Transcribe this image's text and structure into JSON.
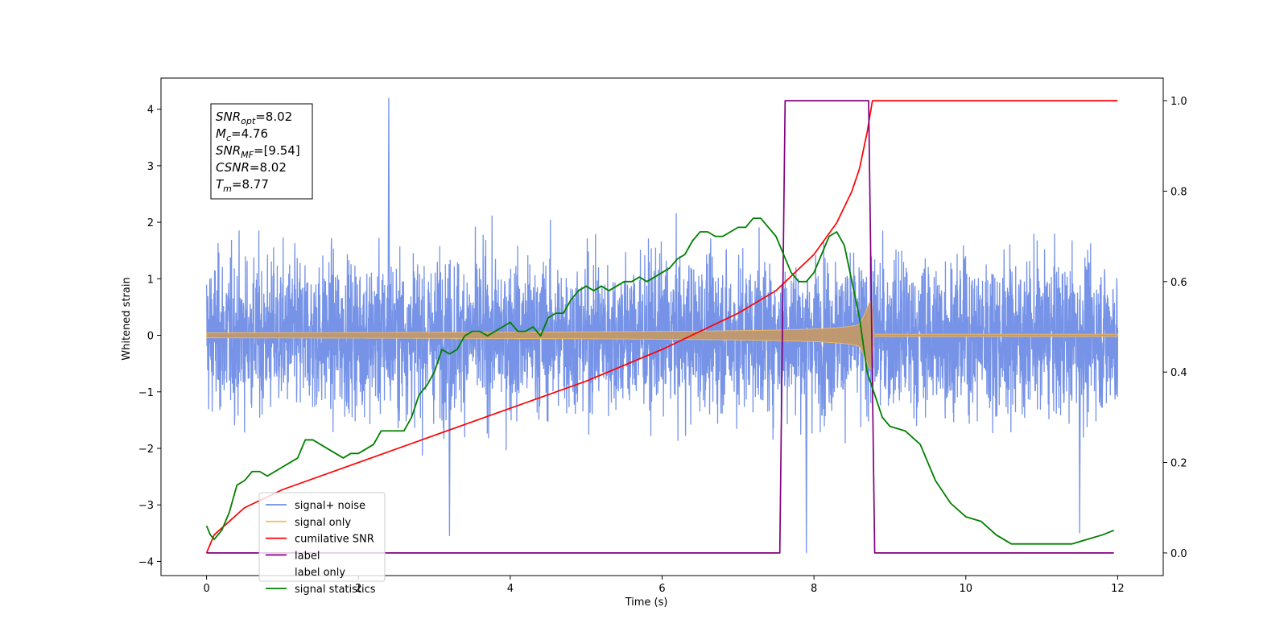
{
  "chart_data": {
    "type": "line",
    "title": "",
    "xlabel": "Time (s)",
    "ylabel": "Whitened strain",
    "xlim": [
      -0.6,
      12.6
    ],
    "ylim": [
      -4.25,
      4.55
    ],
    "y2lim": [
      -0.05,
      1.05
    ],
    "x_ticks": [
      0,
      2,
      4,
      6,
      8,
      10,
      12
    ],
    "y_ticks": [
      -4,
      -3,
      -2,
      -1,
      0,
      1,
      2,
      3,
      4
    ],
    "y2_ticks": [
      0.0,
      0.2,
      0.4,
      0.6,
      0.8,
      1.0
    ],
    "x_tick_labels": [
      "0",
      "2",
      "4",
      "6",
      "8",
      "10",
      "12"
    ],
    "y_tick_labels": [
      "−4",
      "−3",
      "−2",
      "−1",
      "0",
      "1",
      "2",
      "3",
      "4"
    ],
    "y2_tick_labels": [
      "0.0",
      "0.2",
      "0.4",
      "0.6",
      "0.8",
      "1.0"
    ],
    "legend_position": "lower-left",
    "series": [
      {
        "name": "signal+ noise",
        "axis": "left",
        "color": "#6f8de6",
        "kind": "noise",
        "x_range": [
          0,
          12
        ],
        "envelope": [
          2.3,
          2.3
        ],
        "peaks": [
          [
            2.4,
            4.2
          ],
          [
            3.2,
            -3.55
          ],
          [
            7.9,
            -3.85
          ],
          [
            11.5,
            -3.5
          ]
        ]
      },
      {
        "name": "signal only",
        "axis": "left",
        "color": "#f5bf63",
        "kind": "chirp",
        "x_range": [
          0,
          12
        ],
        "merger_time": 8.77,
        "amplitude_at_merger": 0.6,
        "post_merger_amplitude": 0.02
      },
      {
        "name": "cumilative SNR",
        "axis": "right",
        "color": "#ff0000",
        "x": [
          0,
          0.1,
          0.5,
          1,
          2,
          3,
          4,
          5,
          6,
          7,
          7.5,
          8,
          8.3,
          8.5,
          8.6,
          8.7,
          8.77,
          9,
          10,
          12
        ],
        "y": [
          0.0,
          0.04,
          0.1,
          0.14,
          0.2,
          0.26,
          0.32,
          0.38,
          0.45,
          0.53,
          0.58,
          0.66,
          0.73,
          0.8,
          0.85,
          0.93,
          1.0,
          1.0,
          1.0,
          1.0
        ]
      },
      {
        "name": "label",
        "axis": "right",
        "color": "#800080",
        "x": [
          0,
          7.55,
          7.62,
          8.72,
          8.8,
          11.95
        ],
        "y": [
          0,
          0,
          1,
          1,
          0,
          0
        ]
      },
      {
        "name": "label only",
        "axis": "right",
        "color": "#800080",
        "hidden": true,
        "x": [],
        "y": []
      },
      {
        "name": "signal statistics",
        "axis": "right",
        "color": "#008000",
        "x": [
          0,
          0.05,
          0.1,
          0.15,
          0.2,
          0.3,
          0.4,
          0.5,
          0.6,
          0.7,
          0.8,
          0.9,
          1.0,
          1.1,
          1.2,
          1.3,
          1.4,
          1.5,
          1.6,
          1.7,
          1.8,
          1.9,
          2.0,
          2.1,
          2.2,
          2.3,
          2.4,
          2.5,
          2.6,
          2.7,
          2.8,
          2.9,
          3.0,
          3.1,
          3.2,
          3.3,
          3.4,
          3.5,
          3.6,
          3.7,
          3.8,
          3.9,
          4.0,
          4.1,
          4.2,
          4.3,
          4.4,
          4.5,
          4.6,
          4.7,
          4.8,
          4.9,
          5.0,
          5.1,
          5.2,
          5.3,
          5.4,
          5.5,
          5.6,
          5.7,
          5.8,
          5.9,
          6.0,
          6.1,
          6.2,
          6.3,
          6.4,
          6.5,
          6.6,
          6.7,
          6.8,
          6.9,
          7.0,
          7.1,
          7.2,
          7.3,
          7.4,
          7.5,
          7.6,
          7.7,
          7.8,
          7.9,
          8.0,
          8.1,
          8.2,
          8.3,
          8.4,
          8.5,
          8.6,
          8.7,
          8.8,
          8.9,
          9.0,
          9.2,
          9.4,
          9.6,
          9.8,
          10.0,
          10.2,
          10.4,
          10.6,
          10.8,
          11.0,
          11.2,
          11.4,
          11.6,
          11.8,
          11.95
        ],
        "y": [
          0.06,
          0.04,
          0.03,
          0.04,
          0.05,
          0.09,
          0.15,
          0.16,
          0.18,
          0.18,
          0.17,
          0.18,
          0.19,
          0.2,
          0.21,
          0.25,
          0.25,
          0.24,
          0.23,
          0.22,
          0.21,
          0.22,
          0.22,
          0.23,
          0.24,
          0.27,
          0.27,
          0.27,
          0.27,
          0.3,
          0.35,
          0.37,
          0.4,
          0.45,
          0.44,
          0.45,
          0.48,
          0.49,
          0.49,
          0.48,
          0.49,
          0.5,
          0.51,
          0.49,
          0.49,
          0.5,
          0.48,
          0.52,
          0.53,
          0.53,
          0.56,
          0.58,
          0.59,
          0.58,
          0.59,
          0.58,
          0.59,
          0.6,
          0.6,
          0.61,
          0.6,
          0.61,
          0.62,
          0.63,
          0.65,
          0.66,
          0.69,
          0.71,
          0.71,
          0.7,
          0.7,
          0.71,
          0.72,
          0.72,
          0.74,
          0.74,
          0.72,
          0.7,
          0.66,
          0.62,
          0.6,
          0.6,
          0.62,
          0.66,
          0.7,
          0.71,
          0.68,
          0.6,
          0.52,
          0.4,
          0.35,
          0.3,
          0.28,
          0.27,
          0.24,
          0.16,
          0.11,
          0.08,
          0.07,
          0.04,
          0.02,
          0.02,
          0.02,
          0.02,
          0.02,
          0.03,
          0.04,
          0.05
        ]
      }
    ],
    "annotations": [
      {
        "base": "SNR",
        "sub": "opt",
        "text": "=8.02"
      },
      {
        "base": "M",
        "sub": "c",
        "text": "=4.76"
      },
      {
        "base": "SNR",
        "sub": "MF",
        "text": "=[9.54]"
      },
      {
        "base": "CSNR",
        "sub": "",
        "text": "=8.02"
      },
      {
        "base": "T",
        "sub": "m",
        "text": "=8.77"
      }
    ],
    "colors": {
      "axes": "#000000",
      "background": "#ffffff",
      "legend_border": "#cccccc"
    }
  }
}
